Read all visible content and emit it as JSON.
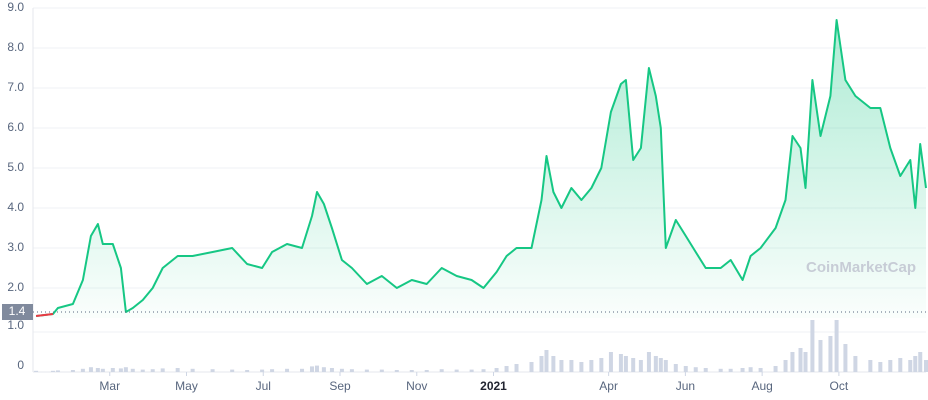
{
  "chart_data": {
    "type": "line",
    "watermark": "CoinMarketCap",
    "x": [
      0.08,
      0.52,
      0.65,
      1.04,
      1.3,
      1.51,
      1.69,
      1.82,
      2.08,
      2.29,
      2.42,
      2.6,
      2.86,
      3.12,
      3.38,
      3.77,
      4.16,
      4.68,
      5.19,
      5.58,
      5.97,
      6.23,
      6.62,
      7.01,
      7.27,
      7.4,
      7.58,
      7.79,
      8.05,
      8.31,
      8.7,
      9.09,
      9.48,
      9.87,
      10.26,
      10.65,
      11.04,
      11.43,
      11.74,
      12.08,
      12.34,
      12.6,
      12.99,
      13.25,
      13.38,
      13.56,
      13.77,
      14.03,
      14.29,
      14.55,
      14.81,
      15.06,
      15.32,
      15.45,
      15.64,
      15.84,
      16.05,
      16.23,
      16.36,
      16.49,
      16.75,
      17.01,
      17.27,
      17.53,
      17.92,
      18.18,
      18.49,
      18.7,
      18.96,
      19.35,
      19.61,
      19.79,
      20.0,
      20.13,
      20.31,
      20.52,
      20.78,
      20.94,
      21.17,
      21.43,
      21.82,
      22.08,
      22.34,
      22.6,
      22.86,
      22.99,
      23.12,
      23.27
    ],
    "xlim": [
      0,
      23.27
    ],
    "xticks": [
      {
        "value": 2,
        "label": "Mar"
      },
      {
        "value": 4,
        "label": "May"
      },
      {
        "value": 6,
        "label": "Jul"
      },
      {
        "value": 8,
        "label": "Sep"
      },
      {
        "value": 10,
        "label": "Nov"
      },
      {
        "value": 12,
        "label": "2021"
      },
      {
        "value": 15,
        "label": "Apr"
      },
      {
        "value": 17,
        "label": "Jun"
      },
      {
        "value": 19,
        "label": "Aug"
      },
      {
        "value": 21,
        "label": "Oct"
      }
    ],
    "series": [
      {
        "name": "Price",
        "color": "#16c784",
        "start_color": "#ea3943",
        "values": [
          1.3,
          1.35,
          1.5,
          1.6,
          2.2,
          3.3,
          3.6,
          3.1,
          3.1,
          2.5,
          1.4,
          1.5,
          1.7,
          2.0,
          2.5,
          2.8,
          2.8,
          2.9,
          3.0,
          2.6,
          2.5,
          2.9,
          3.1,
          3.0,
          3.8,
          4.4,
          4.1,
          3.5,
          2.7,
          2.5,
          2.1,
          2.3,
          2.0,
          2.2,
          2.1,
          2.5,
          2.3,
          2.2,
          2.0,
          2.4,
          2.8,
          3.0,
          3.0,
          4.2,
          5.3,
          4.4,
          4.0,
          4.5,
          4.2,
          4.5,
          5.0,
          6.4,
          7.1,
          7.2,
          5.2,
          5.5,
          7.5,
          6.8,
          6.0,
          3.0,
          3.7,
          3.3,
          2.9,
          2.5,
          2.5,
          2.7,
          2.2,
          2.8,
          3.0,
          3.5,
          4.2,
          5.8,
          5.5,
          4.5,
          7.2,
          5.8,
          6.8,
          8.7,
          7.2,
          6.8,
          6.5,
          6.5,
          5.5,
          4.8,
          5.2,
          4.0,
          5.6,
          4.5
        ]
      },
      {
        "name": "Volume",
        "color": "#cfd6e4",
        "axis": "y2",
        "values": [
          0.03,
          0.03,
          0.04,
          0.05,
          0.08,
          0.12,
          0.1,
          0.08,
          0.1,
          0.09,
          0.12,
          0.08,
          0.06,
          0.07,
          0.09,
          0.1,
          0.08,
          0.07,
          0.06,
          0.05,
          0.06,
          0.07,
          0.08,
          0.08,
          0.14,
          0.16,
          0.12,
          0.1,
          0.08,
          0.07,
          0.06,
          0.06,
          0.05,
          0.05,
          0.05,
          0.07,
          0.06,
          0.06,
          0.07,
          0.1,
          0.15,
          0.2,
          0.25,
          0.4,
          0.55,
          0.4,
          0.3,
          0.3,
          0.25,
          0.3,
          0.35,
          0.5,
          0.45,
          0.4,
          0.35,
          0.3,
          0.5,
          0.4,
          0.35,
          0.3,
          0.2,
          0.15,
          0.12,
          0.1,
          0.08,
          0.08,
          0.1,
          0.12,
          0.1,
          0.15,
          0.3,
          0.5,
          0.6,
          0.5,
          1.3,
          0.8,
          0.9,
          1.3,
          0.7,
          0.4,
          0.3,
          0.25,
          0.3,
          0.35,
          0.3,
          0.4,
          0.5,
          0.3
        ]
      }
    ],
    "ylim": [
      1.25,
      9.0
    ],
    "yticks": [
      {
        "value": 2,
        "label": "2.0"
      },
      {
        "value": 3,
        "label": "3.0"
      },
      {
        "value": 4,
        "label": "4.0"
      },
      {
        "value": 5,
        "label": "5.0"
      },
      {
        "value": 6,
        "label": "6.0"
      },
      {
        "value": 7,
        "label": "7.0"
      },
      {
        "value": 8,
        "label": "8.0"
      },
      {
        "value": 9,
        "label": "9.0"
      }
    ],
    "current_price": {
      "value": 1.4,
      "label": "1.4"
    },
    "y2lim": [
      0,
      1.35
    ],
    "y2ticks": [
      0,
      {
        "value": 1,
        "label": "1.0"
      }
    ],
    "grid": true
  }
}
